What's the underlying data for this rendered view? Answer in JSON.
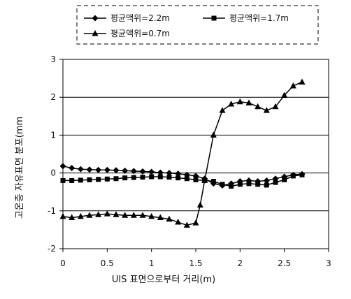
{
  "chart_data": {
    "type": "line",
    "xlabel": "UIS 표면으로부터 거리(m)",
    "ylabel": "고온층 자유표면 분포(mm",
    "xlim": [
      0,
      3
    ],
    "ylim": [
      -2,
      3
    ],
    "xticks": [
      "0",
      "0.5",
      "1",
      "1.5",
      "2",
      "2.5",
      "3"
    ],
    "yticks": [
      "-2",
      "-1",
      "0",
      "1",
      "2",
      "3"
    ],
    "xtick_values": [
      0,
      0.5,
      1,
      1.5,
      2,
      2.5,
      3
    ],
    "ytick_values": [
      -2,
      -1,
      0,
      1,
      2,
      3
    ],
    "grid": "horizontal",
    "legend_position": "top",
    "series": [
      {
        "name": "평균액위=2.2m",
        "marker": "diamond",
        "color": "#000000",
        "x": [
          0,
          0.1,
          0.2,
          0.3,
          0.4,
          0.5,
          0.6,
          0.7,
          0.8,
          0.9,
          1.0,
          1.1,
          1.2,
          1.3,
          1.4,
          1.5,
          1.6,
          1.7,
          1.8,
          1.9,
          2.0,
          2.1,
          2.2,
          2.3,
          2.4,
          2.5,
          2.6,
          2.7
        ],
        "y": [
          0.18,
          0.13,
          0.1,
          0.09,
          0.08,
          0.08,
          0.07,
          0.06,
          0.05,
          0.04,
          0.03,
          0.01,
          0.0,
          -0.02,
          -0.05,
          -0.08,
          -0.15,
          -0.28,
          -0.33,
          -0.28,
          -0.22,
          -0.2,
          -0.22,
          -0.2,
          -0.15,
          -0.1,
          -0.05,
          -0.03
        ]
      },
      {
        "name": "평균액위=1.7m",
        "marker": "square",
        "color": "#000000",
        "x": [
          0,
          0.1,
          0.2,
          0.3,
          0.4,
          0.5,
          0.6,
          0.7,
          0.8,
          0.9,
          1.0,
          1.1,
          1.2,
          1.3,
          1.4,
          1.5,
          1.6,
          1.7,
          1.8,
          1.9,
          2.0,
          2.1,
          2.2,
          2.3,
          2.4,
          2.5,
          2.6,
          2.7
        ],
        "y": [
          -0.2,
          -0.2,
          -0.19,
          -0.18,
          -0.17,
          -0.16,
          -0.15,
          -0.13,
          -0.12,
          -0.11,
          -0.1,
          -0.1,
          -0.11,
          -0.13,
          -0.15,
          -0.18,
          -0.2,
          -0.22,
          -0.3,
          -0.35,
          -0.3,
          -0.28,
          -0.3,
          -0.32,
          -0.25,
          -0.18,
          -0.08,
          -0.05
        ]
      },
      {
        "name": "평균액위=0.7m",
        "marker": "triangle",
        "color": "#000000",
        "x": [
          0,
          0.1,
          0.2,
          0.3,
          0.4,
          0.5,
          0.6,
          0.7,
          0.8,
          0.9,
          1.0,
          1.1,
          1.2,
          1.3,
          1.4,
          1.5,
          1.55,
          1.6,
          1.7,
          1.8,
          1.9,
          2.0,
          2.1,
          2.2,
          2.3,
          2.4,
          2.5,
          2.6,
          2.7
        ],
        "y": [
          -1.15,
          -1.18,
          -1.15,
          -1.12,
          -1.1,
          -1.08,
          -1.1,
          -1.12,
          -1.12,
          -1.12,
          -1.15,
          -1.18,
          -1.22,
          -1.3,
          -1.38,
          -1.32,
          -0.85,
          -0.2,
          1.0,
          1.65,
          1.82,
          1.88,
          1.85,
          1.75,
          1.65,
          1.75,
          2.05,
          2.3,
          2.4
        ]
      }
    ]
  }
}
